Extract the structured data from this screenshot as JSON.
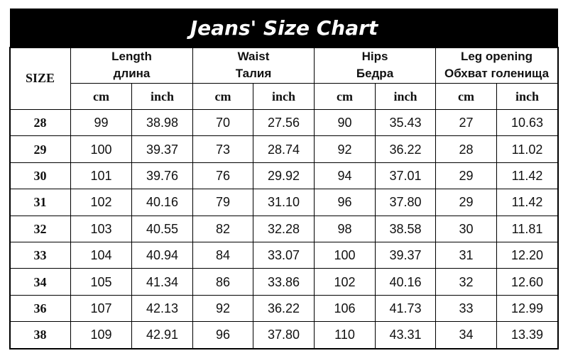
{
  "title": "Jeans' Size Chart",
  "table": {
    "size_header": "SIZE",
    "groups": [
      {
        "en": "Length",
        "ru": "длина"
      },
      {
        "en": "Waist",
        "ru": "Талия"
      },
      {
        "en": "Hips",
        "ru": "Бедра"
      },
      {
        "en": "Leg opening",
        "ru": "Обхват голенища"
      }
    ],
    "units": [
      "cm",
      "inch"
    ],
    "rows": [
      [
        "28",
        "99",
        "38.98",
        "70",
        "27.56",
        "90",
        "35.43",
        "27",
        "10.63"
      ],
      [
        "29",
        "100",
        "39.37",
        "73",
        "28.74",
        "92",
        "36.22",
        "28",
        "11.02"
      ],
      [
        "30",
        "101",
        "39.76",
        "76",
        "29.92",
        "94",
        "37.01",
        "29",
        "11.42"
      ],
      [
        "31",
        "102",
        "40.16",
        "79",
        "31.10",
        "96",
        "37.80",
        "29",
        "11.42"
      ],
      [
        "32",
        "103",
        "40.55",
        "82",
        "32.28",
        "98",
        "38.58",
        "30",
        "11.81"
      ],
      [
        "33",
        "104",
        "40.94",
        "84",
        "33.07",
        "100",
        "39.37",
        "31",
        "12.20"
      ],
      [
        "34",
        "105",
        "41.34",
        "86",
        "33.86",
        "102",
        "40.16",
        "32",
        "12.60"
      ],
      [
        "36",
        "107",
        "42.13",
        "92",
        "36.22",
        "106",
        "41.73",
        "33",
        "12.99"
      ],
      [
        "38",
        "109",
        "42.91",
        "96",
        "37.80",
        "110",
        "43.31",
        "34",
        "13.39"
      ]
    ]
  }
}
